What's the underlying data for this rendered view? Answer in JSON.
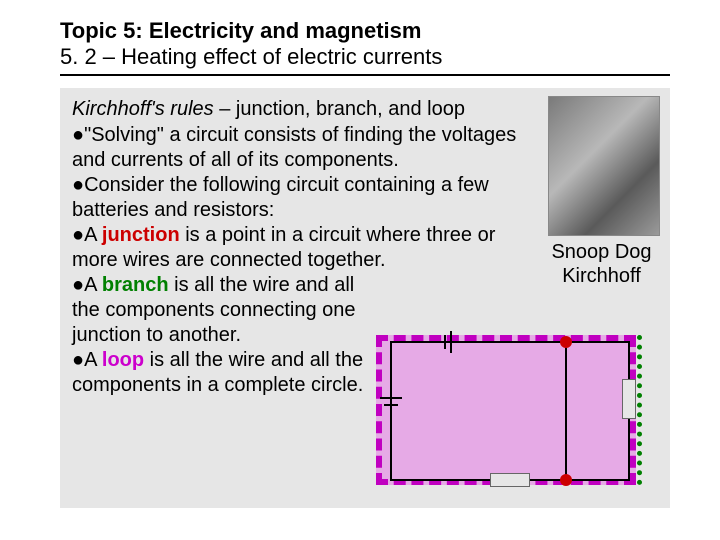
{
  "title_block": {
    "topic": "Topic 5: Electricity and magnetism",
    "subtitle": "5. 2 – Heating effect of electric currents"
  },
  "section": {
    "heading_ital": "Kirchhoff's rules",
    "heading_rest": " – junction, branch, and loop"
  },
  "bullets": {
    "b1": "\"Solving\" a circuit consists of finding the voltages and currents of all of its components.",
    "b2": "Consider the following circuit containing a few batteries and resistors:",
    "b3_pre": "A ",
    "b3_term": "junction",
    "b3_post": " is a point in a circuit where three or more wires are connected together.",
    "b4_pre": "A ",
    "b4_term": "branch",
    "b4_post": " is all the wire and all the components connecting one junction to another.",
    "b5_pre": "A ",
    "b5_term": "loop",
    "b5_post": " is all the wire and all the components in a complete circle."
  },
  "figure": {
    "caption_line1": "Snoop Dog",
    "caption_line2": "Kirchhoff"
  },
  "circuit": {
    "loop_color": "#c000c0",
    "loop_fill": "rgba(230,120,230,0.55)",
    "junction_color": "#cc0000",
    "branch_color": "#008000",
    "wire_color": "#000000"
  },
  "colors": {
    "slide_bg": "#ffffff",
    "content_bg": "#e6e6e6",
    "junction_text": "#cc0000",
    "branch_text": "#008000",
    "loop_text": "#cc00cc"
  }
}
